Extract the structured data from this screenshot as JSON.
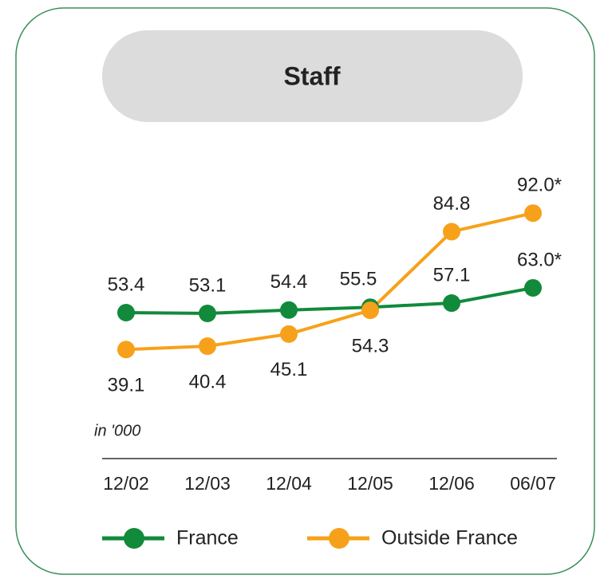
{
  "chart_data": {
    "type": "line",
    "title": "Staff",
    "unit_label": "in '000",
    "categories": [
      "12/02",
      "12/03",
      "12/04",
      "12/05",
      "12/06",
      "06/07"
    ],
    "ylim": [
      20,
      110
    ],
    "series": [
      {
        "name": "France",
        "color": "#118a3b",
        "values": [
          53.4,
          53.1,
          54.4,
          55.5,
          57.1,
          63.0
        ],
        "value_labels": [
          "53.4",
          "53.1",
          "54.4",
          "55.5",
          "57.1",
          "63.0*"
        ]
      },
      {
        "name": "Outside France",
        "color": "#f7a11a",
        "values": [
          39.1,
          40.4,
          45.1,
          54.3,
          84.8,
          92.0
        ],
        "value_labels": [
          "39.1",
          "40.4",
          "45.1",
          "54.3",
          "84.8",
          "92.0*"
        ]
      }
    ]
  }
}
